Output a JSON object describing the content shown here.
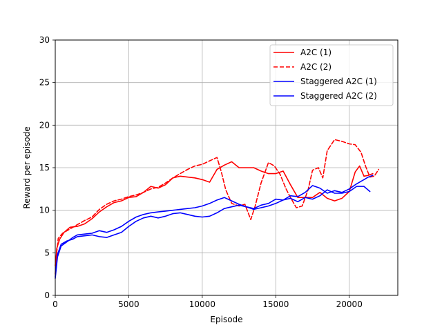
{
  "chart_data": {
    "type": "line",
    "title": "",
    "xlabel": "Episode",
    "ylabel": "Reward per episode",
    "xlim": [
      0,
      23300
    ],
    "ylim": [
      0,
      30
    ],
    "xticks": [
      0,
      5000,
      10000,
      15000,
      20000
    ],
    "yticks": [
      0,
      5,
      10,
      15,
      20,
      25,
      30
    ],
    "grid": true,
    "legend_position": "top-right",
    "series": [
      {
        "name": "A2C (1)",
        "color": "#ff0000",
        "dash": "solid",
        "points": [
          [
            0,
            2.5
          ],
          [
            100,
            5.5
          ],
          [
            300,
            6.6
          ],
          [
            600,
            7.4
          ],
          [
            1000,
            8
          ],
          [
            1500,
            8.1
          ],
          [
            2000,
            8.4
          ],
          [
            2500,
            9
          ],
          [
            3000,
            9.8
          ],
          [
            3500,
            10.4
          ],
          [
            4000,
            10.9
          ],
          [
            4500,
            11.1
          ],
          [
            5000,
            11.5
          ],
          [
            5500,
            11.6
          ],
          [
            6000,
            12.1
          ],
          [
            6500,
            12.8
          ],
          [
            7000,
            12.6
          ],
          [
            7500,
            13
          ],
          [
            8000,
            13.8
          ],
          [
            8500,
            14
          ],
          [
            9000,
            13.9
          ],
          [
            9500,
            13.8
          ],
          [
            10000,
            13.6
          ],
          [
            10500,
            13.3
          ],
          [
            11000,
            14.8
          ],
          [
            11500,
            15.3
          ],
          [
            12000,
            15.7
          ],
          [
            12500,
            15
          ],
          [
            13000,
            15
          ],
          [
            13500,
            15
          ],
          [
            14000,
            14.6
          ],
          [
            14500,
            14.3
          ],
          [
            15000,
            14.3
          ],
          [
            15500,
            14.6
          ],
          [
            16000,
            13
          ],
          [
            16500,
            11.5
          ],
          [
            17000,
            11.5
          ],
          [
            17500,
            11.5
          ],
          [
            18000,
            12.1
          ],
          [
            18500,
            11.4
          ],
          [
            19000,
            11.1
          ],
          [
            19500,
            11.4
          ],
          [
            20000,
            12.2
          ],
          [
            20400,
            14.5
          ],
          [
            20700,
            15.2
          ],
          [
            21000,
            14
          ],
          [
            21300,
            14.1
          ],
          [
            21600,
            14.3
          ]
        ]
      },
      {
        "name": "A2C (2)",
        "color": "#ff0000",
        "dash": "dashed",
        "points": [
          [
            0,
            3.5
          ],
          [
            200,
            6.7
          ],
          [
            500,
            7.3
          ],
          [
            1000,
            7.8
          ],
          [
            1500,
            8.3
          ],
          [
            2000,
            8.8
          ],
          [
            2500,
            9.2
          ],
          [
            3000,
            10.1
          ],
          [
            3500,
            10.7
          ],
          [
            4000,
            11.1
          ],
          [
            4500,
            11.3
          ],
          [
            5000,
            11.6
          ],
          [
            5500,
            11.8
          ],
          [
            6000,
            12.1
          ],
          [
            6500,
            12.5
          ],
          [
            7000,
            12.7
          ],
          [
            7500,
            13.2
          ],
          [
            8000,
            13.8
          ],
          [
            8500,
            14.3
          ],
          [
            9000,
            14.8
          ],
          [
            9500,
            15.2
          ],
          [
            10000,
            15.4
          ],
          [
            10500,
            15.8
          ],
          [
            11000,
            16.2
          ],
          [
            11300,
            14.5
          ],
          [
            11600,
            12.4
          ],
          [
            12000,
            10.8
          ],
          [
            12500,
            10.5
          ],
          [
            12900,
            10.7
          ],
          [
            13300,
            8.9
          ],
          [
            13600,
            10.5
          ],
          [
            14000,
            13.2
          ],
          [
            14500,
            15.6
          ],
          [
            14900,
            15.2
          ],
          [
            15300,
            14.2
          ],
          [
            15700,
            12.5
          ],
          [
            16000,
            11.5
          ],
          [
            16400,
            10.3
          ],
          [
            16800,
            10.5
          ],
          [
            17200,
            12.4
          ],
          [
            17500,
            14.7
          ],
          [
            17900,
            15
          ],
          [
            18200,
            13.8
          ],
          [
            18500,
            17
          ],
          [
            19000,
            18.3
          ],
          [
            19500,
            18.1
          ],
          [
            20000,
            17.8
          ],
          [
            20400,
            17.7
          ],
          [
            20800,
            16.8
          ],
          [
            21100,
            15.2
          ],
          [
            21400,
            13.9
          ],
          [
            21700,
            14
          ],
          [
            22000,
            14.8
          ]
        ]
      },
      {
        "name": "Staggered A2C (1)",
        "color": "#0000ff",
        "dash": "solid",
        "points": [
          [
            0,
            2.2
          ],
          [
            150,
            4.8
          ],
          [
            400,
            6
          ],
          [
            800,
            6.4
          ],
          [
            1200,
            6.6
          ],
          [
            1500,
            6.9
          ],
          [
            2000,
            7
          ],
          [
            2500,
            7.1
          ],
          [
            3000,
            6.9
          ],
          [
            3500,
            6.8
          ],
          [
            4000,
            7.1
          ],
          [
            4500,
            7.4
          ],
          [
            5000,
            8.1
          ],
          [
            5500,
            8.7
          ],
          [
            6000,
            9.1
          ],
          [
            6500,
            9.3
          ],
          [
            7000,
            9.1
          ],
          [
            7500,
            9.3
          ],
          [
            8000,
            9.6
          ],
          [
            8500,
            9.7
          ],
          [
            9000,
            9.5
          ],
          [
            9500,
            9.3
          ],
          [
            10000,
            9.2
          ],
          [
            10500,
            9.3
          ],
          [
            11000,
            9.7
          ],
          [
            11500,
            10.2
          ],
          [
            12000,
            10.4
          ],
          [
            12500,
            10.6
          ],
          [
            13000,
            10.4
          ],
          [
            13500,
            10.2
          ],
          [
            14000,
            10.6
          ],
          [
            14500,
            10.8
          ],
          [
            15000,
            11.3
          ],
          [
            15500,
            11.2
          ],
          [
            16000,
            11.4
          ],
          [
            16500,
            11
          ],
          [
            17000,
            11.5
          ],
          [
            17500,
            11.3
          ],
          [
            18000,
            11.7
          ],
          [
            18500,
            12.4
          ],
          [
            19000,
            12
          ],
          [
            19500,
            12
          ],
          [
            20000,
            12.2
          ],
          [
            20500,
            12.8
          ],
          [
            21000,
            12.8
          ],
          [
            21400,
            12.2
          ]
        ]
      },
      {
        "name": "Staggered A2C (2)",
        "color": "#0000ff",
        "dash": "solid",
        "points": [
          [
            0,
            2
          ],
          [
            150,
            4.5
          ],
          [
            400,
            5.8
          ],
          [
            800,
            6.3
          ],
          [
            1200,
            6.8
          ],
          [
            1500,
            7.1
          ],
          [
            2000,
            7.2
          ],
          [
            2500,
            7.3
          ],
          [
            3000,
            7.6
          ],
          [
            3500,
            7.4
          ],
          [
            4000,
            7.7
          ],
          [
            4500,
            8.1
          ],
          [
            5000,
            8.7
          ],
          [
            5500,
            9.2
          ],
          [
            6000,
            9.5
          ],
          [
            6500,
            9.7
          ],
          [
            7000,
            9.8
          ],
          [
            7500,
            9.9
          ],
          [
            8000,
            10
          ],
          [
            8500,
            10.1
          ],
          [
            9000,
            10.2
          ],
          [
            9500,
            10.3
          ],
          [
            10000,
            10.5
          ],
          [
            10500,
            10.8
          ],
          [
            11000,
            11.2
          ],
          [
            11500,
            11.5
          ],
          [
            12000,
            11.1
          ],
          [
            12500,
            10.7
          ],
          [
            13000,
            10.4
          ],
          [
            13500,
            10.1
          ],
          [
            14000,
            10.3
          ],
          [
            14500,
            10.5
          ],
          [
            15000,
            10.8
          ],
          [
            15500,
            11.2
          ],
          [
            16000,
            11.7
          ],
          [
            16500,
            11.6
          ],
          [
            17000,
            12.1
          ],
          [
            17500,
            12.9
          ],
          [
            18000,
            12.6
          ],
          [
            18500,
            12
          ],
          [
            19000,
            12.3
          ],
          [
            19500,
            12.1
          ],
          [
            20000,
            12.5
          ],
          [
            20500,
            13.1
          ],
          [
            21000,
            13.6
          ],
          [
            21300,
            13.9
          ],
          [
            21600,
            14.1
          ]
        ]
      }
    ]
  }
}
